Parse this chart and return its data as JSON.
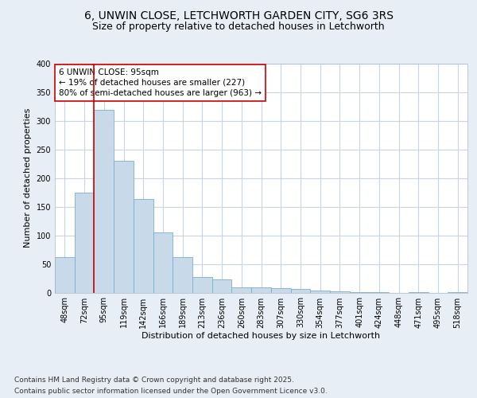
{
  "title_line1": "6, UNWIN CLOSE, LETCHWORTH GARDEN CITY, SG6 3RS",
  "title_line2": "Size of property relative to detached houses in Letchworth",
  "xlabel": "Distribution of detached houses by size in Letchworth",
  "ylabel": "Number of detached properties",
  "categories": [
    "48sqm",
    "72sqm",
    "95sqm",
    "119sqm",
    "142sqm",
    "166sqm",
    "189sqm",
    "213sqm",
    "236sqm",
    "260sqm",
    "283sqm",
    "307sqm",
    "330sqm",
    "354sqm",
    "377sqm",
    "401sqm",
    "424sqm",
    "448sqm",
    "471sqm",
    "495sqm",
    "518sqm"
  ],
  "values": [
    62,
    175,
    320,
    230,
    163,
    105,
    62,
    27,
    23,
    9,
    9,
    7,
    6,
    4,
    2,
    1,
    1,
    0,
    1,
    0,
    1
  ],
  "bar_color": "#c8daea",
  "bar_edge_color": "#7bafc9",
  "vline_color": "#cc0000",
  "vline_index": 2,
  "annotation_text": "6 UNWIN CLOSE: 95sqm\n← 19% of detached houses are smaller (227)\n80% of semi-detached houses are larger (963) →",
  "ylim": [
    0,
    400
  ],
  "yticks": [
    0,
    50,
    100,
    150,
    200,
    250,
    300,
    350,
    400
  ],
  "bg_color": "#e8eef5",
  "plot_bg_color": "#ffffff",
  "grid_color": "#c8d4e0",
  "footer_line1": "Contains HM Land Registry data © Crown copyright and database right 2025.",
  "footer_line2": "Contains public sector information licensed under the Open Government Licence v3.0.",
  "title_fontsize": 10,
  "subtitle_fontsize": 9,
  "axis_label_fontsize": 8,
  "tick_fontsize": 7,
  "annotation_fontsize": 7.5,
  "footer_fontsize": 6.5
}
